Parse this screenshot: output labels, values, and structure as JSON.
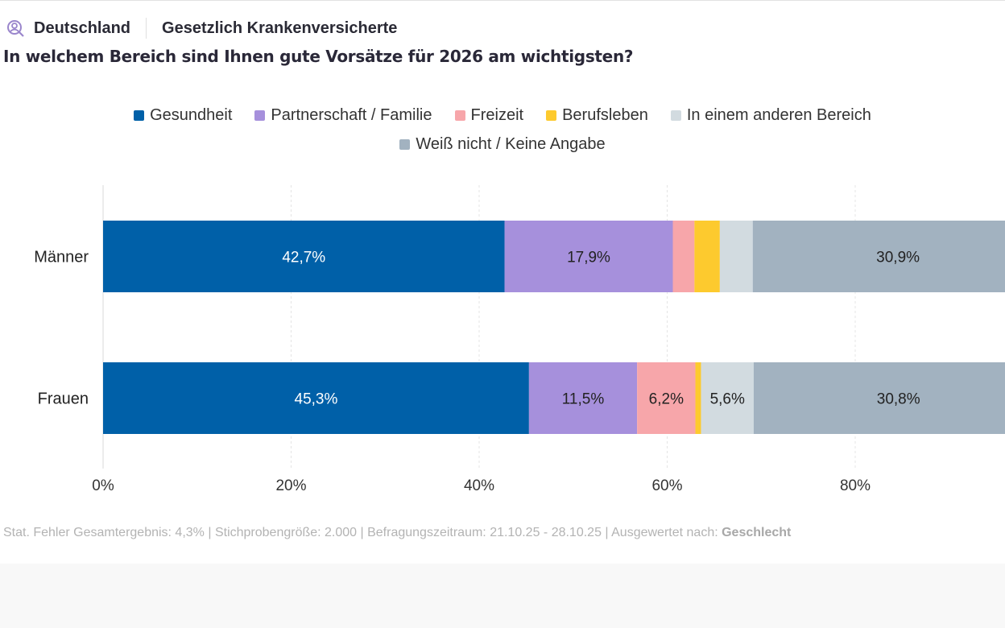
{
  "header": {
    "region": "Deutschland",
    "population": "Gesetzlich Krankenversicherte",
    "icon": "person-search-icon"
  },
  "question": "In welchem Bereich sind Ihnen gute Vorsätze für 2026 am wichtigsten?",
  "footer": {
    "text": "Stat. Fehler Gesamtergebnis: 4,3% | Stichprobengröße: 2.000 | Befragungszeitraum: 21.10.25 - 28.10.25 | Ausgewertet nach: ",
    "grouping": "Geschlecht"
  },
  "chart_data": {
    "type": "bar",
    "orientation": "horizontal",
    "stacked": true,
    "categories": [
      "Männer",
      "Frauen"
    ],
    "series": [
      {
        "name": "Gesundheit",
        "color": "#0060a8",
        "values": [
          42.7,
          45.3
        ],
        "labels": [
          "42,7%",
          "45,3%"
        ]
      },
      {
        "name": "Partnerschaft / Familie",
        "color": "#a690dc",
        "values": [
          17.9,
          11.5
        ],
        "labels": [
          "17,9%",
          "11,5%"
        ]
      },
      {
        "name": "Freizeit",
        "color": "#f7a6aa",
        "values": [
          2.3,
          6.2
        ],
        "labels": [
          "",
          "6,2%"
        ]
      },
      {
        "name": "Berufsleben",
        "color": "#fdca2e",
        "values": [
          2.7,
          0.6
        ],
        "labels": [
          "",
          ""
        ]
      },
      {
        "name": "In einem anderen Bereich",
        "color": "#d2dbe0",
        "values": [
          3.5,
          5.6
        ],
        "labels": [
          "",
          "5,6%"
        ]
      },
      {
        "name": "Weiß nicht / Keine Angabe",
        "color": "#a2b2c0",
        "values": [
          30.9,
          30.8
        ],
        "labels": [
          "30,9%",
          "30,8%"
        ]
      }
    ],
    "xlim": [
      0,
      100
    ],
    "xticks": [
      "0%",
      "20%",
      "40%",
      "60%",
      "80%"
    ],
    "grid": true,
    "legend": "top"
  }
}
